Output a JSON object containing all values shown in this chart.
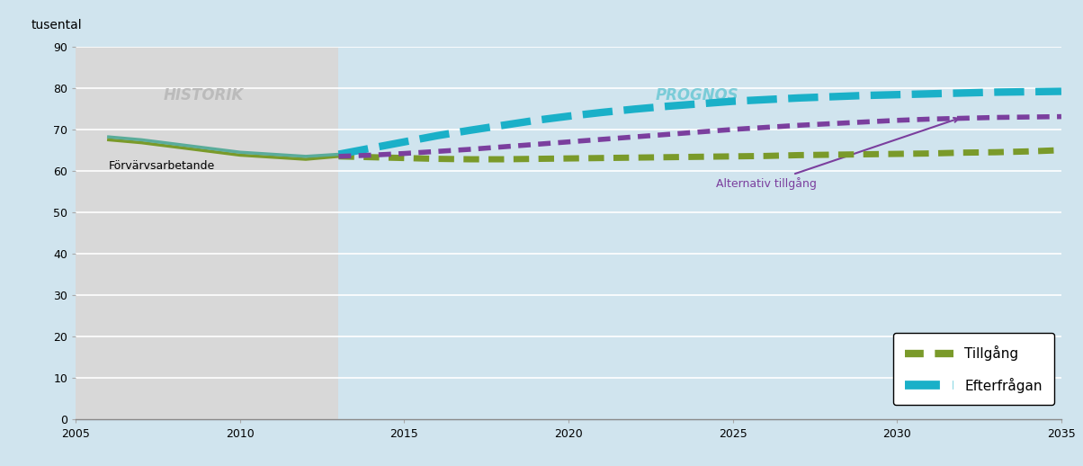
{
  "title_ylabel": "tusental",
  "historik_label": "HISTORIK",
  "prognos_label": "PROGNOS",
  "forvärvsarbetande_label": "Förvärvsarbetande",
  "alternativ_label": "Alternativ tillgång",
  "legend_tillgang": "Tillgång",
  "legend_efterfragan": "Efterfrågan",
  "xlim": [
    2005,
    2035
  ],
  "ylim": [
    0,
    90
  ],
  "yticks": [
    0,
    10,
    20,
    30,
    40,
    50,
    60,
    70,
    80,
    90
  ],
  "xticks": [
    2005,
    2010,
    2015,
    2020,
    2025,
    2030,
    2035
  ],
  "historik_end": 2013,
  "bg_historik": "#d8d8d8",
  "bg_prognos": "#d0e4ee",
  "color_forvärvsarbetande_solid": "#5aac9a",
  "color_tillgang": "#7a9a2a",
  "color_efterfragan": "#1ab0c8",
  "color_alternativ": "#7b3f9e",
  "historik_text_color": "#bbbbbb",
  "prognos_text_color": "#7accd8",
  "years_historik": [
    2006,
    2007,
    2008,
    2009,
    2010,
    2011,
    2012,
    2013
  ],
  "forvärvsarbetande_values": [
    68.2,
    67.5,
    66.5,
    65.5,
    64.5,
    64.0,
    63.5,
    64.0
  ],
  "tillgang_hist_values": [
    67.5,
    66.8,
    65.8,
    64.8,
    63.8,
    63.3,
    62.8,
    63.5
  ],
  "years_prognos": [
    2013,
    2014,
    2015,
    2016,
    2017,
    2018,
    2019,
    2020,
    2021,
    2022,
    2023,
    2024,
    2025,
    2026,
    2027,
    2028,
    2029,
    2030,
    2031,
    2032,
    2033,
    2034,
    2035
  ],
  "tillgang_values": [
    63.5,
    63.3,
    63.1,
    62.9,
    62.8,
    62.8,
    62.9,
    63.0,
    63.1,
    63.2,
    63.3,
    63.4,
    63.5,
    63.6,
    63.8,
    63.9,
    64.0,
    64.1,
    64.2,
    64.4,
    64.5,
    64.7,
    65.0
  ],
  "efterfragan_values": [
    64.0,
    65.5,
    67.0,
    68.5,
    69.8,
    71.0,
    72.2,
    73.2,
    74.1,
    74.9,
    75.6,
    76.2,
    76.8,
    77.2,
    77.6,
    77.9,
    78.2,
    78.4,
    78.6,
    78.8,
    79.0,
    79.1,
    79.2
  ],
  "alternativ_values": [
    63.5,
    63.8,
    64.2,
    64.7,
    65.2,
    65.8,
    66.4,
    67.0,
    67.6,
    68.2,
    68.8,
    69.4,
    70.0,
    70.5,
    71.0,
    71.4,
    71.8,
    72.2,
    72.5,
    72.7,
    72.9,
    73.0,
    73.1
  ]
}
